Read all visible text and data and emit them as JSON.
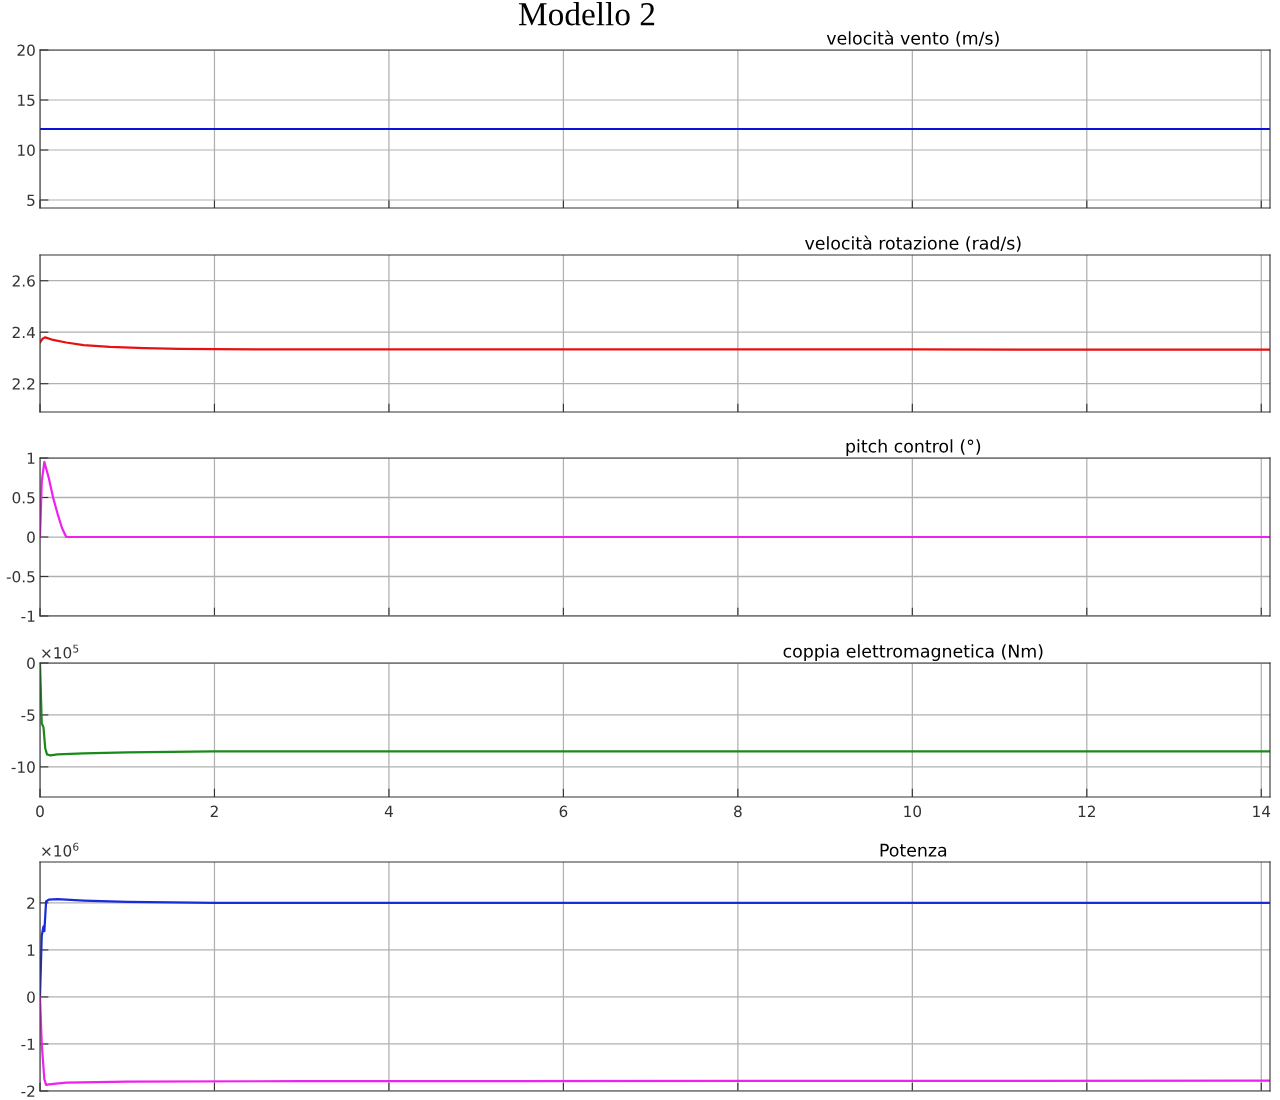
{
  "chart_data": [
    {
      "type": "line",
      "title": "velocità vento (m/s)",
      "annotations": [
        "Modello 2"
      ],
      "xlim": [
        0,
        14.1
      ],
      "xticks": [
        0,
        2,
        4,
        6,
        8,
        10,
        12,
        14
      ],
      "ylim": [
        4.2,
        20
      ],
      "yticks": [
        5,
        10,
        15,
        20
      ],
      "grid": true,
      "tick_labels": "y",
      "series": [
        {
          "color": "#0a14d8",
          "x": [
            0,
            14.1
          ],
          "values": [
            12.1,
            12.1
          ]
        }
      ]
    },
    {
      "type": "line",
      "title": "velocità rotazione (rad/s)",
      "xlim": [
        0,
        14.1
      ],
      "xticks": [
        0,
        2,
        4,
        6,
        8,
        10,
        12,
        14
      ],
      "ylim": [
        2.09,
        2.7
      ],
      "yticks": [
        2.2,
        2.4,
        2.6
      ],
      "grid": true,
      "tick_labels": "y",
      "series": [
        {
          "color": "#e81010",
          "x": [
            0,
            0.03,
            0.06,
            0.15,
            0.3,
            0.5,
            0.8,
            1.2,
            1.6,
            2,
            3,
            6,
            10,
            14.1
          ],
          "values": [
            2.36,
            2.375,
            2.38,
            2.37,
            2.36,
            2.35,
            2.343,
            2.338,
            2.335,
            2.334,
            2.333,
            2.333,
            2.333,
            2.332
          ]
        }
      ]
    },
    {
      "type": "line",
      "title": "pitch control (°)",
      "xlim": [
        0,
        14.1
      ],
      "xticks": [
        0,
        2,
        4,
        6,
        8,
        10,
        12,
        14
      ],
      "ylim": [
        -1,
        1
      ],
      "yticks": [
        -1,
        -0.5,
        0,
        0.5,
        1
      ],
      "grid": true,
      "tick_labels": "y",
      "series": [
        {
          "color": "#f020f0",
          "x": [
            0,
            0.02,
            0.05,
            0.1,
            0.15,
            0.2,
            0.25,
            0.3,
            14.1
          ],
          "values": [
            0,
            0.7,
            0.95,
            0.75,
            0.5,
            0.3,
            0.12,
            0,
            0
          ]
        }
      ]
    },
    {
      "type": "line",
      "title": "coppia elettromagnetica (Nm)",
      "annotations": [
        "×10$^{5}$"
      ],
      "xlim": [
        0,
        14.1
      ],
      "xticks": [
        0,
        2,
        4,
        6,
        8,
        10,
        12,
        14
      ],
      "ylim": [
        -12.9,
        0
      ],
      "yticks": [
        -10,
        -5,
        0
      ],
      "grid": true,
      "series": [
        {
          "color": "#1a8a1a",
          "x": [
            0,
            0.02,
            0.04,
            0.06,
            0.08,
            0.12,
            0.2,
            0.5,
            1,
            2,
            5,
            10,
            14.1
          ],
          "values": [
            0,
            -5.8,
            -6.2,
            -8.2,
            -8.8,
            -8.9,
            -8.8,
            -8.7,
            -8.6,
            -8.5,
            -8.5,
            -8.5,
            -8.5
          ]
        }
      ]
    },
    {
      "type": "line",
      "title": "Potenza",
      "annotations": [
        "×10$^{6}$"
      ],
      "xlim": [
        0,
        14.1
      ],
      "xticks": [
        0,
        2,
        4,
        6,
        8,
        10,
        12,
        14
      ],
      "ylim": [
        -2,
        2.87
      ],
      "yticks": [
        -2,
        -1,
        0,
        1,
        2
      ],
      "grid": true,
      "tick_labels": "y",
      "series": [
        {
          "color": "#1a2bdb",
          "x": [
            0,
            0.02,
            0.04,
            0.05,
            0.07,
            0.1,
            0.2,
            0.5,
            1,
            2,
            6,
            10,
            14.1
          ],
          "values": [
            0,
            1.3,
            1.5,
            1.4,
            2.03,
            2.07,
            2.08,
            2.05,
            2.02,
            2.0,
            2.0,
            2.0,
            2.0
          ]
        },
        {
          "color": "#f020f0",
          "x": [
            0,
            0.02,
            0.05,
            0.07,
            0.1,
            0.3,
            1,
            3,
            14.1
          ],
          "values": [
            0,
            -1.0,
            -1.75,
            -1.87,
            -1.86,
            -1.82,
            -1.8,
            -1.79,
            -1.78
          ]
        }
      ]
    }
  ]
}
